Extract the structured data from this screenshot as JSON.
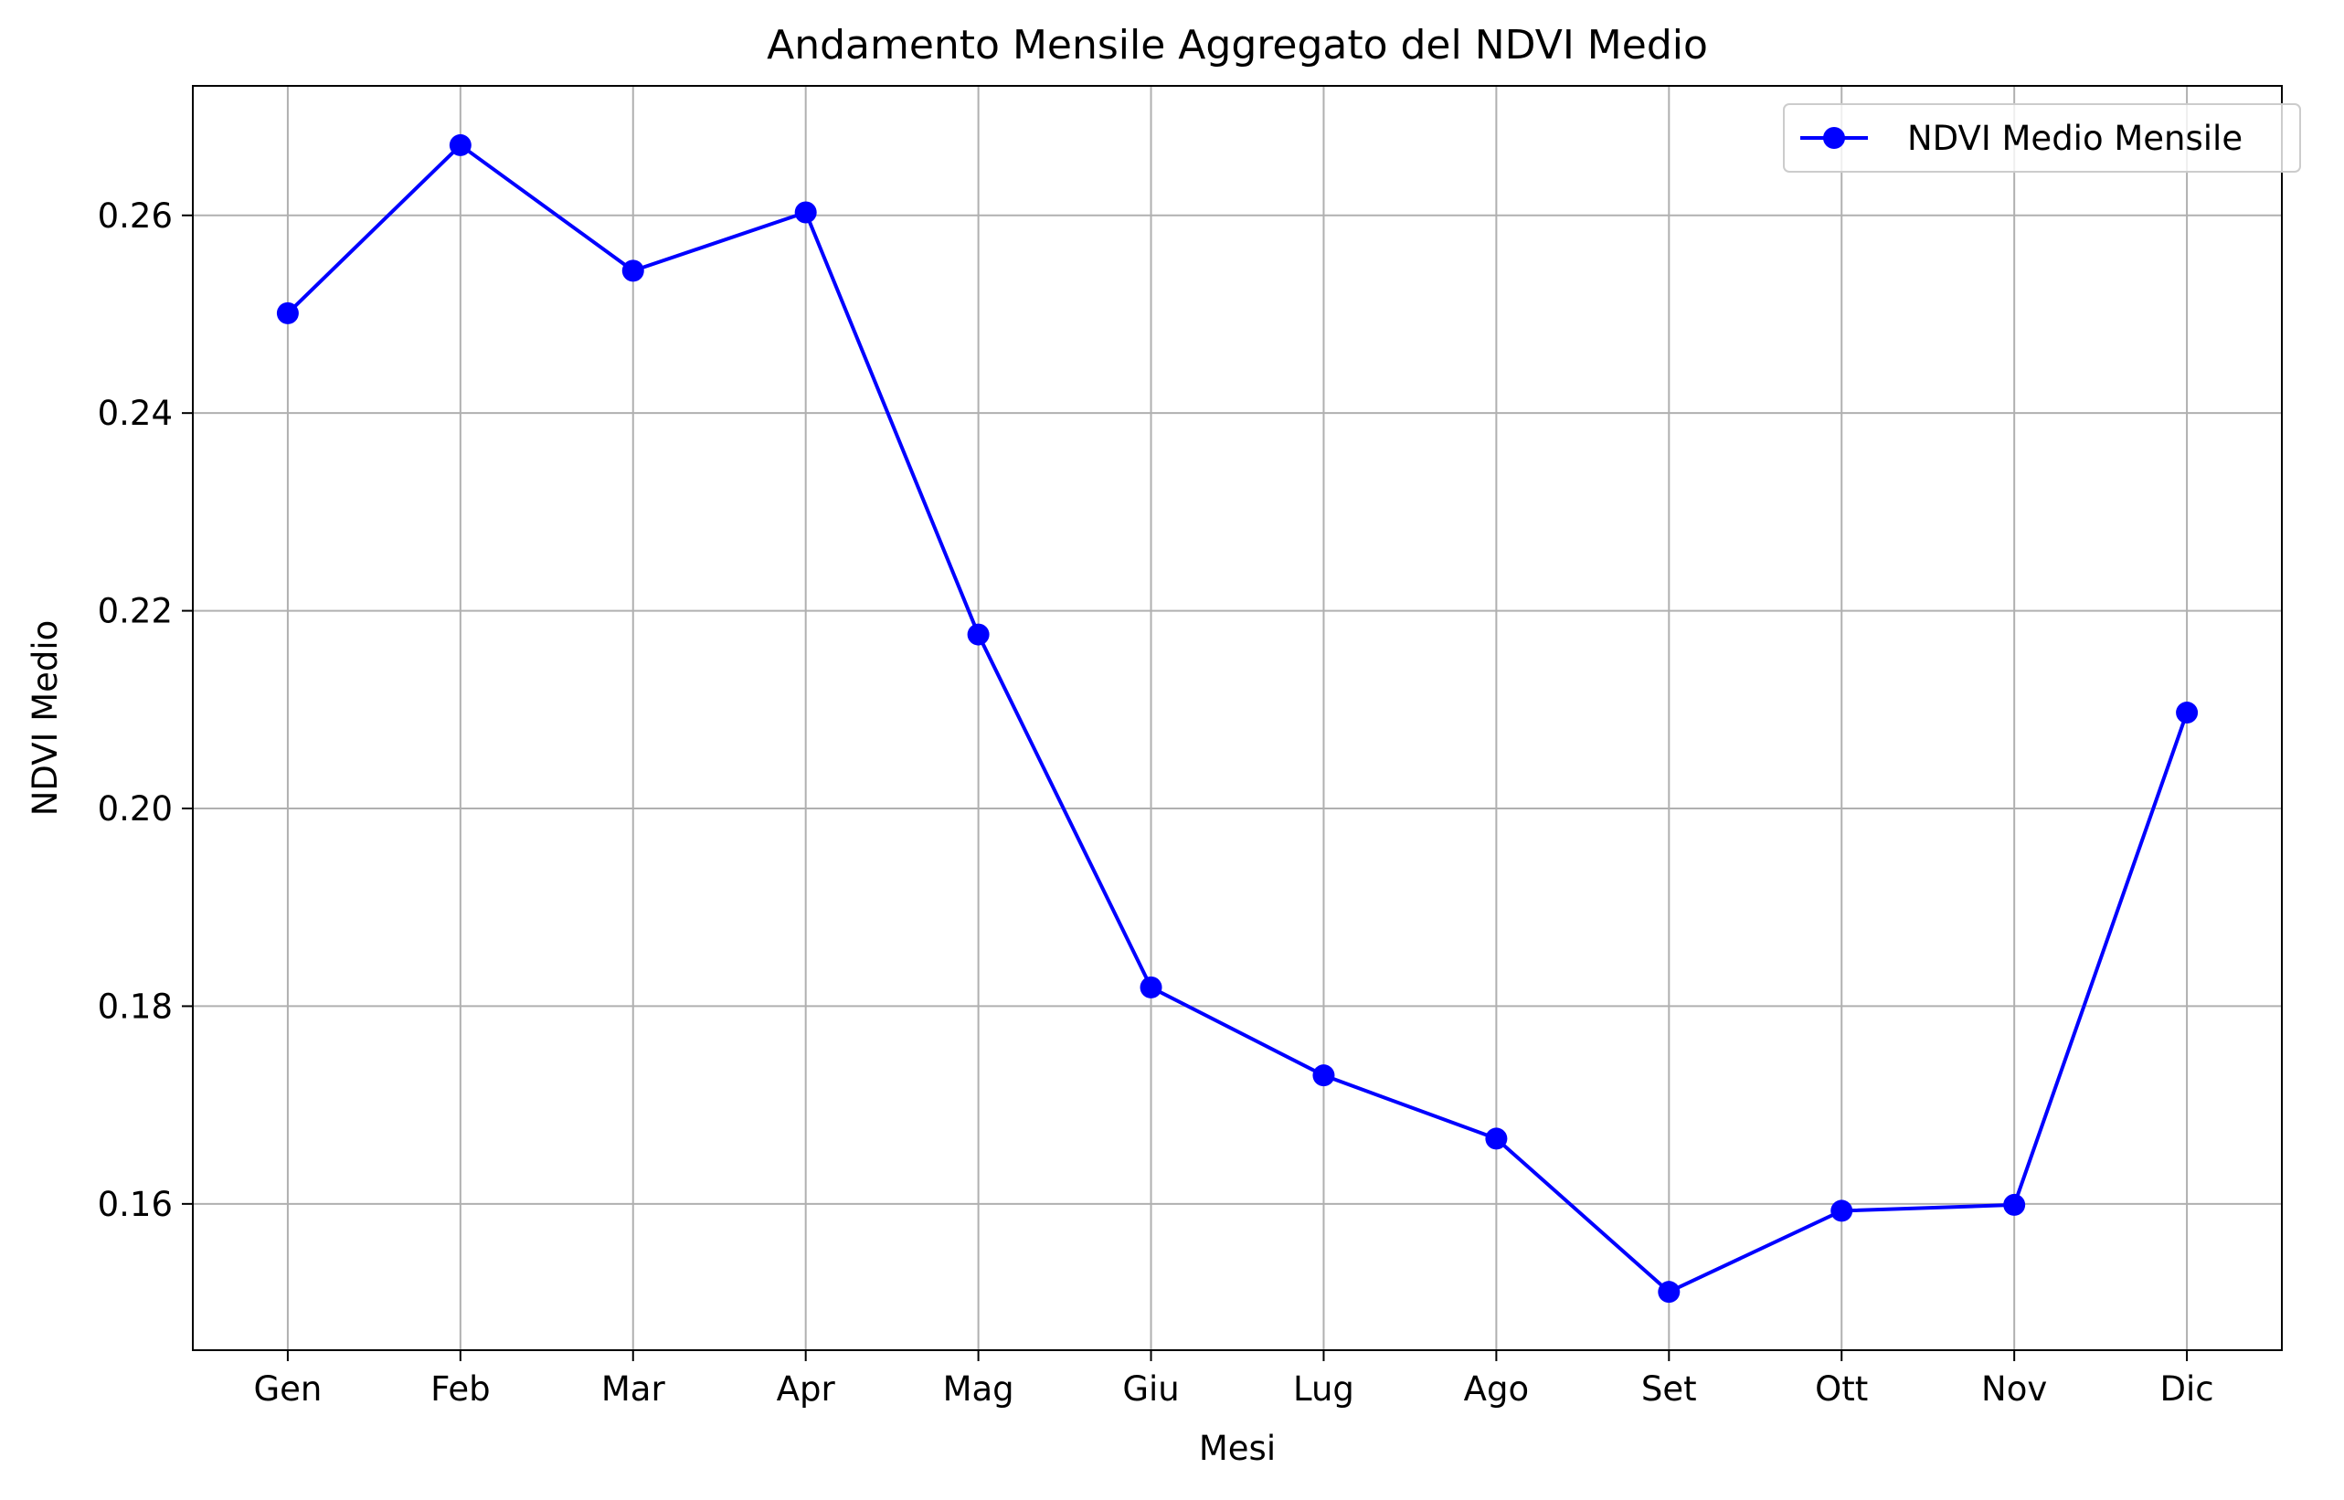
{
  "chart_data": {
    "type": "line",
    "title": "Andamento Mensile Aggregato del NDVI Medio",
    "xlabel": "Mesi",
    "ylabel": "NDVI Medio",
    "categories": [
      "Gen",
      "Feb",
      "Mar",
      "Apr",
      "Mag",
      "Giu",
      "Lug",
      "Ago",
      "Set",
      "Ott",
      "Nov",
      "Dic"
    ],
    "series": [
      {
        "name": "NDVI Medio Mensile",
        "values": [
          0.2501,
          0.2671,
          0.2544,
          0.2603,
          0.2176,
          0.1819,
          0.173,
          0.1666,
          0.1511,
          0.1593,
          0.1599,
          0.2097
        ],
        "color": "#0000ff",
        "marker": "circle"
      }
    ],
    "ylim": [
      0.1452,
      0.2731
    ],
    "yticks": [
      0.16,
      0.18,
      0.2,
      0.22,
      0.24,
      0.26
    ],
    "ytick_labels": [
      "0.16",
      "0.18",
      "0.20",
      "0.22",
      "0.24",
      "0.26"
    ],
    "grid": true,
    "legend_position": "top-right"
  }
}
